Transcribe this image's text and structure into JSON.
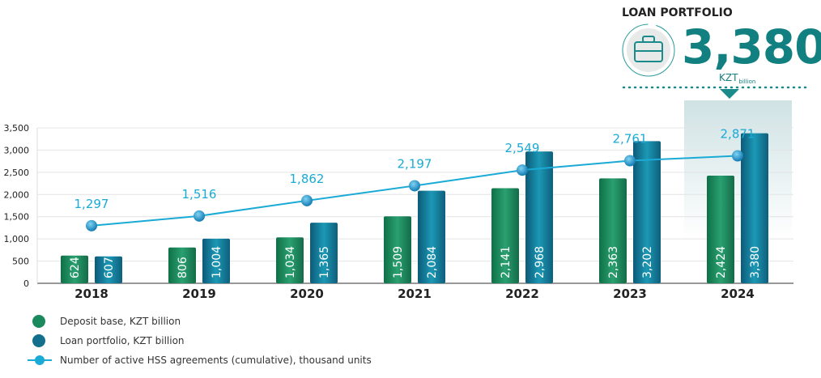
{
  "highlight": {
    "title": "LOAN PORTFOLIO",
    "value": "3,380",
    "unit": "KZT",
    "unit_sub": "billion",
    "icon": "briefcase-icon"
  },
  "chart_data": {
    "type": "bar",
    "categories": [
      "2018",
      "2019",
      "2020",
      "2021",
      "2022",
      "2023",
      "2024"
    ],
    "series": [
      {
        "name": "Deposit base, KZT billion",
        "type": "bar",
        "color": "#1a8a5e",
        "values": [
          624,
          806,
          1034,
          1509,
          2141,
          2363,
          2424
        ],
        "labels": [
          "624",
          "806",
          "1,034",
          "1,509",
          "2,141",
          "2,363",
          "2,424"
        ]
      },
      {
        "name": "Loan portfolio, KZT billion",
        "type": "bar",
        "color": "#136f8c",
        "values": [
          607,
          1004,
          1365,
          2084,
          2968,
          3202,
          3380
        ],
        "labels": [
          "607",
          "1,004",
          "1,365",
          "2,084",
          "2,968",
          "3,202",
          "3,380"
        ]
      },
      {
        "name": "Number of active HSS agreements (cumulative), thousand units",
        "type": "line",
        "color": "#1aaad6",
        "values": [
          1297,
          1516,
          1862,
          2197,
          2549,
          2761,
          2871
        ],
        "labels": [
          "1,297",
          "1,516",
          "1,862",
          "2,197",
          "2,549",
          "2,761",
          "2,871"
        ]
      }
    ],
    "yticks": [
      "0",
      "500",
      "1,000",
      "1,500",
      "2,000",
      "2,500",
      "3,000",
      "3,500"
    ],
    "ylim": [
      0,
      3500
    ],
    "grid": true,
    "legend": "bottom-left",
    "highlighted_category": "2024"
  }
}
